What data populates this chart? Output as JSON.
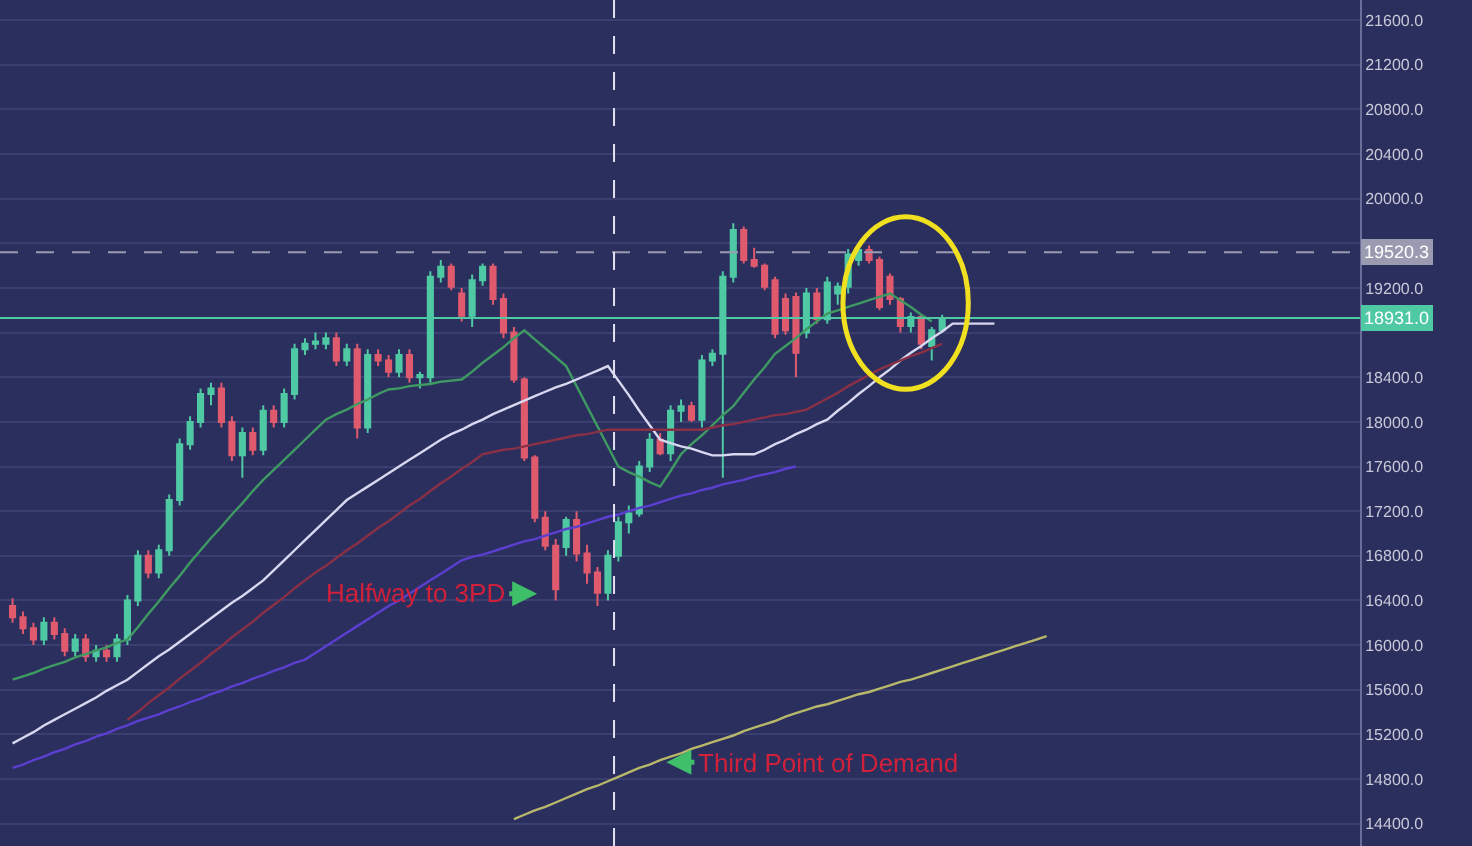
{
  "chart_data": {
    "type": "candlestick",
    "categories": [
      null,
      null,
      null,
      null,
      null,
      null,
      null,
      null,
      null,
      null,
      null,
      null,
      null,
      null,
      null,
      null,
      null,
      null,
      null,
      null,
      null,
      null,
      null,
      null,
      null,
      null,
      null,
      null,
      null,
      null,
      null,
      null,
      null,
      null,
      null,
      null,
      null,
      null,
      null,
      null,
      null,
      null,
      null,
      null,
      null,
      null,
      null,
      null,
      null,
      null,
      null,
      null,
      null,
      null,
      null,
      null,
      null,
      null,
      null,
      null,
      null,
      null,
      null,
      null,
      null,
      null,
      null,
      null,
      null,
      null,
      null,
      null,
      null,
      null,
      null,
      null,
      null,
      null,
      null,
      null,
      null,
      null,
      null,
      null,
      null,
      null,
      null,
      null,
      null,
      null,
      null,
      null,
      null,
      null,
      null,
      null,
      null,
      null,
      null,
      null
    ],
    "ohlc": [
      [
        16350,
        16420,
        16200,
        16250
      ],
      [
        16250,
        16300,
        16100,
        16150
      ],
      [
        16150,
        16200,
        16000,
        16050
      ],
      [
        16050,
        16250,
        16000,
        16200
      ],
      [
        16200,
        16250,
        16050,
        16100
      ],
      [
        16100,
        16150,
        15900,
        15950
      ],
      [
        15950,
        16100,
        15900,
        16050
      ],
      [
        16050,
        16100,
        15850,
        15900
      ],
      [
        15900,
        16000,
        15850,
        15950
      ],
      [
        15950,
        16000,
        15850,
        15900
      ],
      [
        15900,
        16100,
        15850,
        16050
      ],
      [
        16050,
        16450,
        16000,
        16400
      ],
      [
        16400,
        16850,
        16350,
        16800
      ],
      [
        16800,
        16850,
        16600,
        16650
      ],
      [
        16650,
        16900,
        16600,
        16850
      ],
      [
        16850,
        17350,
        16800,
        17300
      ],
      [
        17300,
        17850,
        17250,
        17800
      ],
      [
        17800,
        18050,
        17750,
        18000
      ],
      [
        18000,
        18300,
        17950,
        18250
      ],
      [
        18250,
        18350,
        18150,
        18300
      ],
      [
        18300,
        18350,
        17950,
        18000
      ],
      [
        18000,
        18050,
        17650,
        17700
      ],
      [
        17700,
        17950,
        17500,
        17900
      ],
      [
        17900,
        17950,
        17700,
        17750
      ],
      [
        17750,
        18150,
        17700,
        18100
      ],
      [
        18100,
        18150,
        17950,
        18000
      ],
      [
        18000,
        18300,
        17950,
        18250
      ],
      [
        18250,
        18700,
        18200,
        18650
      ],
      [
        18650,
        18750,
        18600,
        18700
      ],
      [
        18700,
        18800,
        18650,
        18720
      ],
      [
        18700,
        18800,
        18650,
        18750
      ],
      [
        18750,
        18800,
        18500,
        18550
      ],
      [
        18550,
        18700,
        18500,
        18650
      ],
      [
        18650,
        18700,
        17850,
        17950
      ],
      [
        17950,
        18650,
        17900,
        18600
      ],
      [
        18600,
        18650,
        18500,
        18550
      ],
      [
        18550,
        18600,
        18400,
        18450
      ],
      [
        18450,
        18650,
        18400,
        18600
      ],
      [
        18600,
        18650,
        18350,
        18400
      ],
      [
        18400,
        18450,
        18300,
        18420
      ],
      [
        18400,
        19350,
        18350,
        19300
      ],
      [
        19300,
        19450,
        19250,
        19390
      ],
      [
        19390,
        19420,
        19180,
        19210
      ],
      [
        19150,
        19200,
        18900,
        18950
      ],
      [
        18950,
        19320,
        18850,
        19270
      ],
      [
        19270,
        19420,
        19220,
        19390
      ],
      [
        19390,
        19420,
        19050,
        19100
      ],
      [
        19100,
        19150,
        18750,
        18800
      ],
      [
        18800,
        18850,
        18350,
        18380
      ],
      [
        18380,
        18400,
        17650,
        17680
      ],
      [
        17680,
        17700,
        17100,
        17140
      ],
      [
        17140,
        17200,
        16850,
        16890
      ],
      [
        16890,
        16950,
        16400,
        16500
      ],
      [
        16880,
        17150,
        16800,
        17120
      ],
      [
        17120,
        17200,
        16750,
        16820
      ],
      [
        16820,
        16900,
        16550,
        16650
      ],
      [
        16650,
        16700,
        16350,
        16470
      ],
      [
        16470,
        16850,
        16400,
        16800
      ],
      [
        16800,
        17150,
        16750,
        17100
      ],
      [
        17100,
        17250,
        17000,
        17180
      ],
      [
        17180,
        17650,
        17150,
        17600
      ],
      [
        17600,
        17900,
        17550,
        17840
      ],
      [
        17840,
        17900,
        17700,
        17720
      ],
      [
        17720,
        18150,
        17650,
        18100
      ],
      [
        18100,
        18200,
        18000,
        18140
      ],
      [
        18140,
        18180,
        18000,
        18020
      ],
      [
        18020,
        18600,
        17950,
        18550
      ],
      [
        18550,
        18650,
        18500,
        18610
      ],
      [
        18610,
        19350,
        17500,
        19300
      ],
      [
        19300,
        19780,
        19250,
        19720
      ],
      [
        19720,
        19750,
        19420,
        19450
      ],
      [
        19450,
        19560,
        19380,
        19400
      ],
      [
        19400,
        19420,
        19180,
        19210
      ],
      [
        19270,
        19300,
        18750,
        18790
      ],
      [
        19100,
        19150,
        18780,
        18820
      ],
      [
        19120,
        19160,
        18400,
        18620
      ],
      [
        18800,
        19200,
        18750,
        19150
      ],
      [
        19150,
        19200,
        18880,
        18920
      ],
      [
        18920,
        19300,
        18880,
        19250
      ],
      [
        19150,
        19250,
        19050,
        19210
      ],
      [
        19210,
        19550,
        19150,
        19500
      ],
      [
        19450,
        19580,
        19400,
        19540
      ],
      [
        19540,
        19580,
        19420,
        19450
      ],
      [
        19450,
        19480,
        19000,
        19030
      ],
      [
        19300,
        19330,
        19050,
        19100
      ],
      [
        19100,
        19120,
        18800,
        18860
      ],
      [
        18860,
        18980,
        18800,
        18940
      ],
      [
        18940,
        18960,
        18650,
        18700
      ],
      [
        18680,
        18850,
        18550,
        18820
      ],
      [
        18820,
        18960,
        18800,
        18931
      ],
      null,
      null,
      null,
      null,
      null,
      null,
      null,
      null,
      null,
      null
    ],
    "colors": [
      "#e05a6e",
      "#e05a6e",
      "#e05a6e",
      "#4fc9a4",
      "#e05a6e",
      "#e05a6e",
      "#4fc9a4",
      "#e05a6e",
      "#4fc9a4",
      "#e05a6e",
      "#4fc9a4",
      "#4fc9a4",
      "#4fc9a4",
      "#e05a6e",
      "#4fc9a4",
      "#4fc9a4",
      "#4fc9a4",
      "#4fc9a4",
      "#4fc9a4",
      "#4fc9a4",
      "#e05a6e",
      "#e05a6e",
      "#4fc9a4",
      "#e05a6e",
      "#4fc9a4",
      "#e05a6e",
      "#4fc9a4",
      "#4fc9a4",
      "#4fc9a4",
      "#4fc9a4",
      "#4fc9a4",
      "#e05a6e",
      "#4fc9a4",
      "#e05a6e",
      "#4fc9a4",
      "#e05a6e",
      "#e05a6e",
      "#4fc9a4",
      "#e05a6e",
      "#4fc9a4",
      "#4fc9a4",
      "#4fc9a4",
      "#e05a6e",
      "#e05a6e",
      "#4fc9a4",
      "#4fc9a4",
      "#e05a6e",
      "#e05a6e",
      "#e05a6e",
      "#e05a6e",
      "#e05a6e",
      "#e05a6e",
      "#e05a6e",
      "#4fc9a4",
      "#e05a6e",
      "#e05a6e",
      "#e05a6e",
      "#4fc9a4",
      "#4fc9a4",
      "#4fc9a4",
      "#4fc9a4",
      "#4fc9a4",
      "#e05a6e",
      "#4fc9a4",
      "#4fc9a4",
      "#e05a6e",
      "#4fc9a4",
      "#4fc9a4",
      "#4fc9a4",
      "#4fc9a4",
      "#e05a6e",
      "#e05a6e",
      "#e05a6e",
      "#e05a6e",
      "#e05a6e",
      "#e05a6e",
      "#4fc9a4",
      "#e05a6e",
      "#4fc9a4",
      "#4fc9a4",
      "#4fc9a4",
      "#4fc9a4",
      "#e05a6e",
      "#e05a6e",
      "#e05a6e",
      "#e05a6e",
      "#4fc9a4",
      "#e05a6e",
      "#4fc9a4",
      "#4fc9a4",
      null,
      null,
      null,
      null,
      null,
      null,
      null,
      null,
      null,
      null
    ],
    "series": [
      {
        "type": "line",
        "color": "#3e9a62",
        "values": [
          15690,
          15720,
          15750,
          15790,
          15820,
          15850,
          15890,
          15920,
          15950,
          15980,
          16020,
          16050,
          16160,
          16280,
          16390,
          16510,
          16620,
          16740,
          16850,
          16960,
          17060,
          17170,
          17270,
          17380,
          17480,
          17570,
          17660,
          17750,
          17840,
          17930,
          18020,
          18070,
          18110,
          18160,
          18200,
          18250,
          18290,
          18300,
          18320,
          18330,
          18340,
          18360,
          18370,
          18380,
          18450,
          18530,
          18600,
          18670,
          18750,
          18820,
          18740,
          18660,
          18580,
          18500,
          18320,
          18140,
          17960,
          17780,
          17600,
          17550,
          17510,
          17460,
          17420,
          17560,
          17710,
          17800,
          17880,
          17970,
          18060,
          18140,
          18260,
          18380,
          18490,
          18610,
          18680,
          18750,
          18830,
          18900,
          18970,
          19000,
          19030,
          19060,
          19090,
          19120,
          19150,
          19090,
          19030,
          18960,
          18900,
          null,
          null,
          null,
          null,
          null,
          null,
          null,
          null,
          null,
          null,
          null
        ]
      },
      {
        "type": "line",
        "color": "#d8d8f0",
        "values": [
          15120,
          15170,
          15220,
          15280,
          15330,
          15380,
          15430,
          15480,
          15530,
          15590,
          15640,
          15690,
          15760,
          15830,
          15900,
          15960,
          16030,
          16100,
          16170,
          16240,
          16310,
          16380,
          16440,
          16510,
          16580,
          16670,
          16760,
          16850,
          16940,
          17030,
          17120,
          17210,
          17300,
          17360,
          17420,
          17480,
          17540,
          17600,
          17660,
          17720,
          17780,
          17840,
          17890,
          17930,
          17980,
          18020,
          18070,
          18110,
          18150,
          18190,
          18230,
          18270,
          18310,
          18340,
          18380,
          18420,
          18460,
          18500,
          18370,
          18240,
          18100,
          17970,
          17840,
          17810,
          17780,
          17760,
          17730,
          17700,
          17700,
          17710,
          17710,
          17710,
          17750,
          17800,
          17840,
          17890,
          17930,
          17980,
          18020,
          18100,
          18170,
          18250,
          18320,
          18400,
          18470,
          18550,
          18620,
          18680,
          18750,
          18810,
          18880,
          18880,
          18880,
          18880,
          18880,
          null,
          null,
          null,
          null,
          null
        ]
      },
      {
        "type": "line",
        "color": "#8a3046",
        "values": [
          null,
          null,
          null,
          null,
          null,
          null,
          null,
          null,
          null,
          null,
          null,
          15330,
          15400,
          15480,
          15550,
          15620,
          15700,
          15770,
          15840,
          15920,
          15990,
          16070,
          16140,
          16210,
          16290,
          16360,
          16430,
          16510,
          16580,
          16650,
          16710,
          16780,
          16850,
          16910,
          16980,
          17050,
          17110,
          17180,
          17250,
          17310,
          17380,
          17450,
          17510,
          17580,
          17640,
          17710,
          17730,
          17750,
          17760,
          17780,
          17800,
          17820,
          17840,
          17860,
          17880,
          17890,
          17910,
          17930,
          17930,
          17930,
          17930,
          17930,
          17930,
          17930,
          17930,
          17930,
          17930,
          17950,
          17970,
          17980,
          18000,
          18020,
          18040,
          18060,
          18070,
          18090,
          18110,
          18160,
          18210,
          18260,
          18320,
          18370,
          18420,
          18470,
          18510,
          18550,
          18590,
          18620,
          18660,
          18700,
          null,
          null,
          null,
          null,
          null,
          null,
          null,
          null,
          null,
          null
        ]
      },
      {
        "type": "line",
        "color": "#5b3fd0",
        "values": [
          14900,
          14930,
          14970,
          15000,
          15040,
          15070,
          15110,
          15140,
          15180,
          15210,
          15250,
          15280,
          15320,
          15350,
          15380,
          15420,
          15450,
          15490,
          15520,
          15560,
          15590,
          15630,
          15660,
          15700,
          15730,
          15770,
          15800,
          15840,
          15870,
          15930,
          15990,
          16050,
          16110,
          16170,
          16230,
          16290,
          16350,
          16400,
          16460,
          16520,
          16580,
          16640,
          16700,
          16760,
          16790,
          16810,
          16840,
          16870,
          16900,
          16930,
          16950,
          16980,
          17010,
          17040,
          17060,
          17090,
          17120,
          17150,
          17170,
          17200,
          17230,
          17250,
          17280,
          17310,
          17340,
          17360,
          17390,
          17410,
          17440,
          17460,
          17480,
          17510,
          17530,
          17550,
          17580,
          17600,
          null,
          null,
          null,
          null,
          null,
          null,
          null,
          null,
          null,
          null,
          null,
          null,
          null,
          null,
          null,
          null,
          null,
          null,
          null,
          null,
          null,
          null,
          null,
          null
        ]
      },
      {
        "type": "line",
        "color": "#b8b86a",
        "values": [
          null,
          null,
          null,
          null,
          null,
          null,
          null,
          null,
          null,
          null,
          null,
          null,
          null,
          null,
          null,
          null,
          null,
          null,
          null,
          null,
          null,
          null,
          null,
          null,
          null,
          null,
          null,
          null,
          null,
          null,
          null,
          null,
          null,
          null,
          null,
          null,
          null,
          null,
          null,
          null,
          null,
          null,
          null,
          null,
          null,
          null,
          null,
          null,
          14440,
          14480,
          14520,
          14550,
          14590,
          14630,
          14670,
          14710,
          14740,
          14780,
          14820,
          14860,
          14900,
          14930,
          14970,
          15000,
          15030,
          15070,
          15100,
          15130,
          15160,
          15190,
          15230,
          15260,
          15290,
          15320,
          15360,
          15390,
          15420,
          15450,
          15470,
          15500,
          15530,
          15560,
          15580,
          15610,
          15640,
          15670,
          15690,
          15720,
          15750,
          15780,
          15810,
          15840,
          15870,
          15900,
          15930,
          15960,
          15990,
          16020,
          16050,
          16080
        ]
      }
    ],
    "ylim": [
      14200,
      21780
    ],
    "yticks": [
      {
        "value": 14400,
        "label": "14400.0"
      },
      {
        "value": 14800,
        "label": "14800.0"
      },
      {
        "value": 15200,
        "label": "15200.0"
      },
      {
        "value": 15600,
        "label": "15600.0"
      },
      {
        "value": 16000,
        "label": "16000.0"
      },
      {
        "value": 16400,
        "label": "16400.0"
      },
      {
        "value": 16800,
        "label": "16800.0"
      },
      {
        "value": 17200,
        "label": "17200.0"
      },
      {
        "value": 17600,
        "label": "17600.0"
      },
      {
        "value": 18000,
        "label": "18000.0"
      },
      {
        "value": 18400,
        "label": "18400.0"
      },
      {
        "value": 18800,
        "label": null
      },
      {
        "value": 19200,
        "label": "19200.0"
      },
      {
        "value": 19600,
        "label": null
      },
      {
        "value": 20000,
        "label": "20000.0"
      },
      {
        "value": 20400,
        "label": "20400.0"
      },
      {
        "value": 20800,
        "label": "20800.0"
      },
      {
        "value": 21200,
        "label": "21200.0"
      },
      {
        "value": 21600,
        "label": "21600.0"
      }
    ],
    "tick_labels": "y",
    "grid": "y",
    "ref_lines": [
      {
        "axis": "y",
        "value": 19520.3,
        "label": "19520.3",
        "color": "#9a9ab0",
        "line_style": "dashed"
      },
      {
        "axis": "y",
        "value": 18931.0,
        "label": "18931.0",
        "color": "#4fc9a4",
        "line_style": "solid"
      }
    ],
    "annotations": [
      {
        "text": "Halfway to 3PD",
        "y": 16460
      },
      "Third Point of Demand"
    ]
  }
}
